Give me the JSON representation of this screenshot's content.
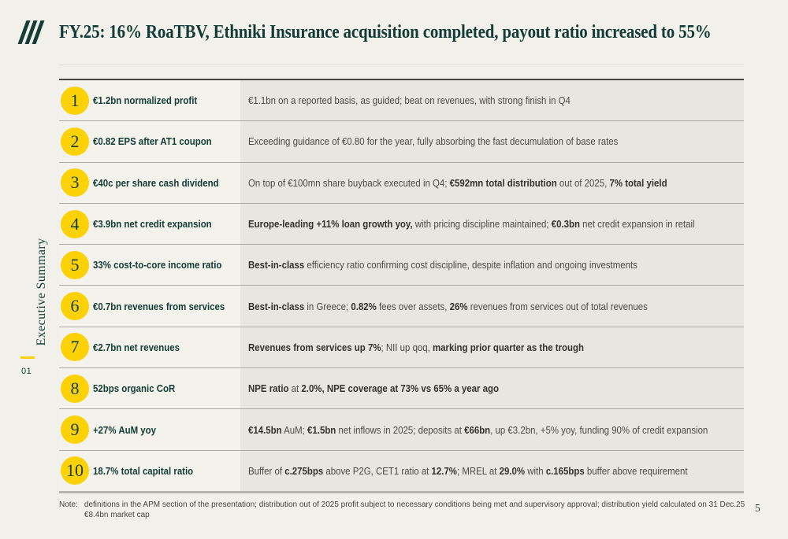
{
  "header": {
    "title": "FY.25: 16% RoaTBV, Ethniki Insurance acquisition completed, payout ratio increased to 55%"
  },
  "sidebar": {
    "section": "Executive Summary",
    "number": "01"
  },
  "colors": {
    "brand_green": "#123c35",
    "accent_yellow": "#fdd205",
    "page_background": "#f2f0ea",
    "description_background": "#e9e6e0"
  },
  "icons": {
    "logo": "nbg-three-slashes"
  },
  "table": {
    "rows": [
      {
        "num": "1",
        "label": "€1.2bn normalized profit",
        "desc": [
          {
            "t": "€1.1bn on a reported basis, as guided; beat on revenues, with strong finish in Q4",
            "b": false
          }
        ]
      },
      {
        "num": "2",
        "label": "€0.82 EPS after AT1 coupon",
        "desc": [
          {
            "t": "Exceeding guidance of €0.80 for the year, fully absorbing the fast decumulation of base rates",
            "b": false
          }
        ]
      },
      {
        "num": "3",
        "label": "€40c per share cash dividend",
        "desc": [
          {
            "t": "On top of €100mn share buyback executed in Q4; ",
            "b": false
          },
          {
            "t": "€592mn total distribution",
            "b": true
          },
          {
            "t": " out of 2025, ",
            "b": false
          },
          {
            "t": "7% total yield",
            "b": true
          }
        ]
      },
      {
        "num": "4",
        "label": "€3.9bn net credit expansion",
        "desc": [
          {
            "t": "Europe-leading +11% loan growth yoy,",
            "b": true
          },
          {
            "t": " with pricing discipline maintained; ",
            "b": false
          },
          {
            "t": "€0.3bn",
            "b": true
          },
          {
            "t": " net credit expansion in retail",
            "b": false
          }
        ]
      },
      {
        "num": "5",
        "label": "33% cost-to-core income ratio",
        "desc": [
          {
            "t": "Best-in-class",
            "b": true
          },
          {
            "t": " efficiency ratio confirming cost discipline, despite inflation and ongoing investments",
            "b": false
          }
        ]
      },
      {
        "num": "6",
        "label": "€0.7bn revenues from services",
        "desc": [
          {
            "t": "Best-in-class",
            "b": true
          },
          {
            "t": " in Greece; ",
            "b": false
          },
          {
            "t": "0.82%",
            "b": true
          },
          {
            "t": " fees over assets, ",
            "b": false
          },
          {
            "t": "26%",
            "b": true
          },
          {
            "t": " revenues from services out of total revenues",
            "b": false
          }
        ]
      },
      {
        "num": "7",
        "label": "€2.7bn net revenues",
        "desc": [
          {
            "t": "Revenues from services up 7%",
            "b": true
          },
          {
            "t": "; NII up qoq, ",
            "b": false
          },
          {
            "t": "marking prior quarter as the trough",
            "b": true
          }
        ]
      },
      {
        "num": "8",
        "label": "52bps organic CoR",
        "desc": [
          {
            "t": "NPE ratio",
            "b": true
          },
          {
            "t": " at ",
            "b": false
          },
          {
            "t": "2.0%, NPE coverage at 73% vs 65% a year ago",
            "b": true
          }
        ]
      },
      {
        "num": "9",
        "label": "+27% AuM yoy",
        "desc": [
          {
            "t": "€14.5bn",
            "b": true
          },
          {
            "t": " AuM; ",
            "b": false
          },
          {
            "t": "€1.5bn",
            "b": true
          },
          {
            "t": " net inflows in 2025; deposits at ",
            "b": false
          },
          {
            "t": "€66bn",
            "b": true
          },
          {
            "t": ", up €3.2bn, +5% yoy, funding 90% of credit expansion",
            "b": false
          }
        ]
      },
      {
        "num": "10",
        "label": "18.7% total capital ratio",
        "desc": [
          {
            "t": "Buffer of ",
            "b": false
          },
          {
            "t": "c.275bps",
            "b": true
          },
          {
            "t": " above P2G, CET1 ratio at ",
            "b": false
          },
          {
            "t": "12.7%",
            "b": true
          },
          {
            "t": "; MREL at ",
            "b": false
          },
          {
            "t": "29.0%",
            "b": true
          },
          {
            "t": " with ",
            "b": false
          },
          {
            "t": "c.165bps",
            "b": true
          },
          {
            "t": " buffer above requirement",
            "b": false
          }
        ]
      }
    ]
  },
  "footer": {
    "note_label": "Note:",
    "note_text": "definitions in the APM section of the presentation; distribution out of 2025 profit subject to necessary conditions being met and supervisory approval; distribution yield calculated on 31 Dec.25 €8.4bn market cap",
    "page_number": "5"
  }
}
